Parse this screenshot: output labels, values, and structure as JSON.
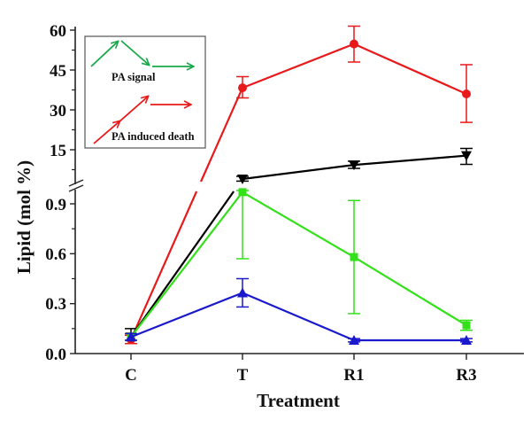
{
  "chart_data": {
    "type": "line",
    "title": "",
    "xlabel": "Treatment",
    "ylabel": "Lipid (mol %)",
    "categories": [
      "C",
      "T",
      "R1",
      "R3"
    ],
    "y_axis": {
      "broken": true,
      "lower_segment": {
        "range": [
          0.0,
          0.99
        ],
        "ticks": [
          0.0,
          0.3,
          0.6,
          0.9
        ],
        "tick_labels": [
          "0.0",
          "0.3",
          "0.6",
          "0.9"
        ]
      },
      "upper_segment": {
        "range": [
          2.3,
          60
        ],
        "ticks": [
          15,
          30,
          45,
          60
        ],
        "tick_labels": [
          "15",
          "30",
          "45",
          "60"
        ]
      }
    },
    "grid": false,
    "series": [
      {
        "name": "red-circle",
        "color": "#e8191b",
        "marker": "circle",
        "values": [
          0.085,
          38.3,
          54.8,
          36.0
        ],
        "err_low": [
          0.06,
          34.5,
          48.0,
          25.3
        ],
        "err_high": [
          0.11,
          42.5,
          61.5,
          47.0
        ]
      },
      {
        "name": "black-down-triangle",
        "color": "#000000",
        "marker": "triangle-down",
        "values": [
          0.1,
          4.0,
          9.3,
          12.8
        ],
        "err_low": [
          0.08,
          3.2,
          8.0,
          9.5
        ],
        "err_high": [
          0.15,
          5.0,
          10.7,
          15.5
        ]
      },
      {
        "name": "green-square",
        "color": "#33e01a",
        "marker": "square",
        "values": [
          0.1,
          0.97,
          0.58,
          0.17
        ],
        "err_low": [
          0.08,
          0.57,
          0.24,
          0.14
        ],
        "err_high": [
          0.12,
          0.98,
          0.92,
          0.2
        ]
      },
      {
        "name": "blue-up-triangle",
        "color": "#1a1acc",
        "marker": "triangle-up",
        "values": [
          0.1,
          0.365,
          0.08,
          0.08
        ],
        "err_low": [
          0.08,
          0.28,
          0.07,
          0.07
        ],
        "err_high": [
          0.12,
          0.45,
          0.09,
          0.09
        ]
      }
    ],
    "legend": {
      "placement": "top-left",
      "items": [
        {
          "label": "PA signal",
          "color": "#1aa84a",
          "glyph": "green-arrow-path"
        },
        {
          "label": "PA induced death",
          "color": "#e8191b",
          "glyph": "red-arrow-path"
        }
      ]
    }
  }
}
